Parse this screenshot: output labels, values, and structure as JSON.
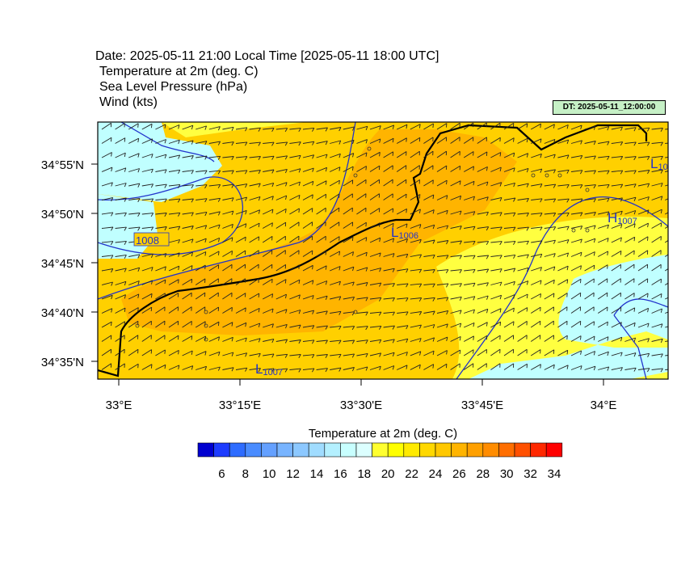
{
  "header": {
    "date_line": "Date: 2025-05-11  21:00 Local Time [2025-05-11  18:00 UTC]",
    "fields": [
      "Temperature at 2m   (deg. C)",
      "Sea Level Pressure   (hPa)",
      "Wind   (kts)"
    ],
    "dt_label": "DT: 2025-05-11_12:00:00"
  },
  "map": {
    "lon_ticks": [
      "33°E",
      "33°15'E",
      "33°30'E",
      "33°45'E",
      "34°E"
    ],
    "lat_ticks": [
      "34°55'N",
      "34°50'N",
      "34°45'N",
      "34°40'N",
      "34°35'N"
    ],
    "pressure_labels": [
      {
        "kind": "L",
        "value": "1006"
      },
      {
        "kind": "L",
        "value": "1007"
      },
      {
        "kind": "H",
        "value": "1007"
      },
      {
        "kind": "L",
        "value": "10"
      },
      {
        "kind": "isobar",
        "value": "1008"
      }
    ],
    "colors": {
      "land_warm": "#ffd000",
      "land_hot": "#ffb000",
      "sea_cool": "#ffff40",
      "cold": "#c0ffff",
      "isobar": "#2233cc"
    }
  },
  "colorbar": {
    "title": "Temperature at 2m  (deg. C)",
    "labels": [
      "6",
      "8",
      "10",
      "12",
      "14",
      "16",
      "18",
      "20",
      "22",
      "24",
      "26",
      "28",
      "30",
      "32",
      "34"
    ],
    "colors": [
      "#0000d0",
      "#1e3cff",
      "#2e6cff",
      "#4a8cff",
      "#64a0ff",
      "#78b4ff",
      "#8cc8ff",
      "#a0dcff",
      "#b4f0ff",
      "#c8ffff",
      "#dcffff",
      "#ffff30",
      "#ffff00",
      "#ffea00",
      "#ffd800",
      "#ffc800",
      "#ffb400",
      "#ffa000",
      "#ff8c00",
      "#ff6e00",
      "#ff5000",
      "#ff2800",
      "#ff0000"
    ]
  }
}
